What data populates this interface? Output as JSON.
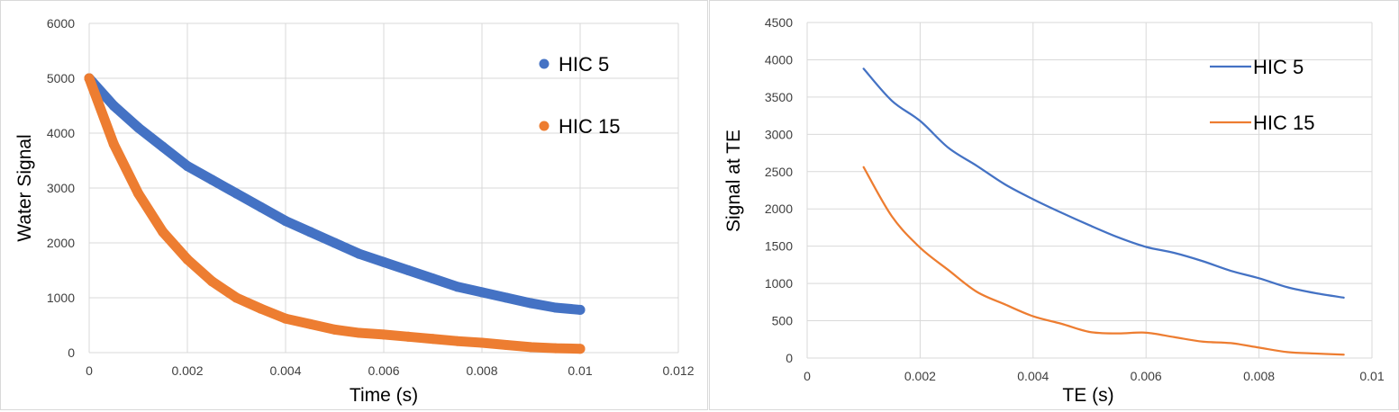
{
  "chart_data": [
    {
      "type": "scatter",
      "title": "",
      "xlabel": "Time (s)",
      "ylabel": "Water Signal",
      "xlim": [
        0,
        0.012
      ],
      "ylim": [
        0,
        6000
      ],
      "xticks": [
        "0",
        "0.002",
        "0.004",
        "0.006",
        "0.008",
        "0.01",
        "0.012"
      ],
      "yticks": [
        "0",
        "1000",
        "2000",
        "3000",
        "4000",
        "5000",
        "6000"
      ],
      "grid": true,
      "legend": "right",
      "series": [
        {
          "name": "HIC 5",
          "color": "#4472C4",
          "x": [
            0,
            0.0005,
            0.001,
            0.0015,
            0.002,
            0.0025,
            0.003,
            0.0035,
            0.004,
            0.0045,
            0.005,
            0.0055,
            0.006,
            0.0065,
            0.007,
            0.0075,
            0.008,
            0.0085,
            0.009,
            0.0095,
            0.01
          ],
          "y": [
            5000,
            4500,
            4100,
            3750,
            3400,
            3150,
            2900,
            2650,
            2400,
            2200,
            2000,
            1800,
            1650,
            1500,
            1350,
            1200,
            1100,
            1000,
            900,
            820,
            780
          ]
        },
        {
          "name": "HIC 15",
          "color": "#ED7D31",
          "x": [
            0,
            0.0005,
            0.001,
            0.0015,
            0.002,
            0.0025,
            0.003,
            0.0035,
            0.004,
            0.0045,
            0.005,
            0.0055,
            0.006,
            0.0065,
            0.007,
            0.0075,
            0.008,
            0.0085,
            0.009,
            0.0095,
            0.01
          ],
          "y": [
            5000,
            3800,
            2900,
            2200,
            1700,
            1300,
            1000,
            800,
            620,
            520,
            420,
            360,
            330,
            290,
            250,
            210,
            180,
            140,
            100,
            80,
            70
          ]
        }
      ]
    },
    {
      "type": "line",
      "title": "",
      "xlabel": "TE (s)",
      "ylabel": "Signal at TE",
      "xlim": [
        0,
        0.01
      ],
      "ylim": [
        0,
        4500
      ],
      "xticks": [
        "0",
        "0.002",
        "0.004",
        "0.006",
        "0.008",
        "0.01"
      ],
      "yticks": [
        "0",
        "500",
        "1000",
        "1500",
        "2000",
        "2500",
        "3000",
        "3500",
        "4000",
        "4500"
      ],
      "grid": true,
      "legend": "right",
      "series": [
        {
          "name": "HIC 5",
          "color": "#4472C4",
          "x": [
            0.001,
            0.0015,
            0.002,
            0.0025,
            0.003,
            0.0035,
            0.004,
            0.0045,
            0.005,
            0.0055,
            0.006,
            0.0065,
            0.007,
            0.0075,
            0.008,
            0.0085,
            0.009,
            0.0095
          ],
          "y": [
            3880,
            3450,
            3180,
            2820,
            2580,
            2330,
            2130,
            1950,
            1780,
            1620,
            1490,
            1410,
            1300,
            1170,
            1070,
            950,
            870,
            810
          ]
        },
        {
          "name": "HIC 15",
          "color": "#ED7D31",
          "x": [
            0.001,
            0.0015,
            0.002,
            0.0025,
            0.003,
            0.0035,
            0.004,
            0.0045,
            0.005,
            0.0055,
            0.006,
            0.0065,
            0.007,
            0.0075,
            0.008,
            0.0085,
            0.009,
            0.0095
          ],
          "y": [
            2560,
            1900,
            1480,
            1180,
            890,
            720,
            560,
            460,
            350,
            330,
            340,
            280,
            220,
            200,
            140,
            80,
            60,
            45
          ]
        }
      ]
    }
  ]
}
